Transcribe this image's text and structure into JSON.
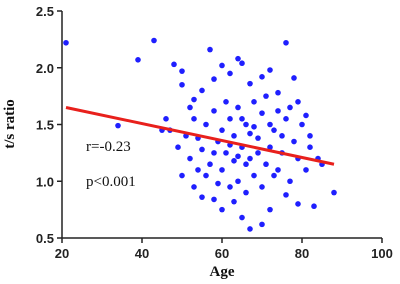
{
  "chart_data": {
    "type": "scatter",
    "xlabel": "Age",
    "ylabel": "t/s ratio",
    "annotations": [
      "r=-0.23",
      "p<0.001"
    ],
    "color": "#1f1fff",
    "x": [
      21,
      34,
      39,
      43,
      46,
      48,
      50,
      50,
      52,
      53,
      55,
      57,
      58,
      60,
      62,
      64,
      65,
      67,
      70,
      72,
      74,
      76,
      78,
      79,
      81,
      82,
      84,
      85,
      88,
      83,
      79,
      76,
      72,
      70,
      67,
      65,
      63,
      60,
      58,
      55,
      53,
      50,
      49,
      47,
      45,
      52,
      54,
      56,
      58,
      59,
      60,
      61,
      62,
      63,
      64,
      65,
      66,
      67,
      68,
      69,
      70,
      71,
      72,
      73,
      74,
      75,
      76,
      77,
      78,
      79,
      80,
      81,
      82,
      57,
      55,
      53,
      51,
      62,
      64,
      66,
      68,
      70,
      72,
      74,
      66,
      60,
      61,
      59,
      56,
      63,
      67,
      69,
      71,
      73,
      75,
      77,
      65,
      62,
      58,
      54,
      68,
      64
    ],
    "values": [
      2.22,
      1.49,
      2.07,
      2.24,
      1.55,
      2.03,
      1.97,
      1.85,
      1.65,
      1.72,
      1.8,
      2.16,
      1.9,
      2.02,
      1.95,
      2.08,
      2.04,
      1.86,
      1.92,
      1.98,
      1.78,
      2.22,
      1.91,
      1.7,
      1.58,
      1.4,
      1.2,
      1.15,
      0.9,
      0.78,
      0.8,
      0.88,
      0.75,
      0.62,
      0.58,
      0.68,
      0.82,
      0.75,
      0.84,
      0.86,
      0.95,
      1.05,
      1.3,
      1.45,
      1.45,
      1.2,
      1.38,
      1.5,
      1.62,
      1.35,
      1.1,
      1.25,
      1.55,
      1.4,
      1.0,
      1.3,
      1.5,
      1.2,
      1.05,
      1.38,
      1.6,
      1.15,
      1.3,
      1.45,
      1.1,
      1.25,
      1.55,
      1.0,
      1.35,
      1.2,
      1.5,
      1.1,
      1.3,
      1.15,
      1.28,
      1.55,
      1.4,
      0.95,
      1.65,
      0.9,
      1.7,
      0.95,
      1.5,
      1.62,
      1.15,
      1.45,
      1.7,
      0.98,
      1.05,
      1.18,
      1.42,
      1.25,
      1.75,
      1.05,
      1.4,
      1.65,
      1.55,
      1.32,
      1.25,
      1.1,
      1.48,
      1.22
    ],
    "fit_line": {
      "x": [
        21,
        88
      ],
      "values": [
        1.65,
        1.15
      ],
      "color": "#e8201c"
    },
    "xlim": [
      20,
      100
    ],
    "xticks": [
      20,
      40,
      60,
      80,
      100
    ],
    "ylim": [
      0.5,
      2.5
    ],
    "yticks": [
      0.5,
      {
        "value": 1.0,
        "label": "1.0"
      },
      1.5,
      {
        "value": 2.0,
        "label": "2.0"
      },
      2.5
    ]
  }
}
